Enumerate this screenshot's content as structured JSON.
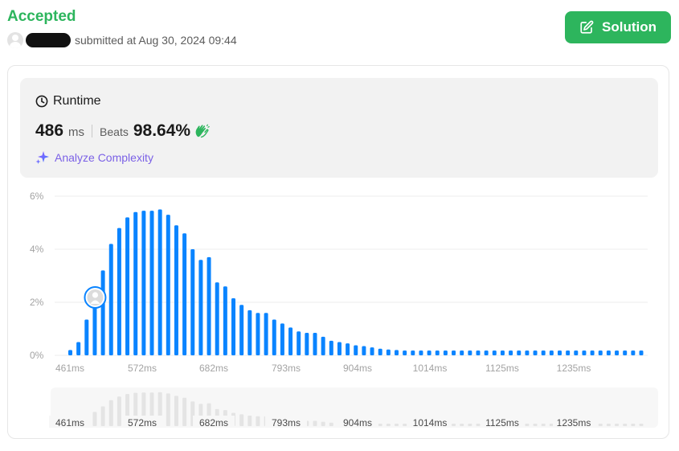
{
  "header": {
    "status": "Accepted",
    "submitted_text": "submitted at Aug 30, 2024 09:44",
    "solution_label": "Solution"
  },
  "runtime": {
    "title": "Runtime",
    "value": "486",
    "unit": "ms",
    "beats_label": "Beats",
    "beats_value": "98.64%",
    "analyze_label": "Analyze Complexity"
  },
  "colors": {
    "accepted_green": "#2db55d",
    "bar_blue": "#0a84ff",
    "analyze_purple": "#7b61e6",
    "minimap_bar": "#e4e4e4"
  },
  "icons": [
    "user-avatar-icon",
    "edit-icon",
    "clock-icon",
    "clap-hands-icon",
    "sparkle-icon"
  ],
  "chart_data": {
    "type": "bar",
    "title": "",
    "xlabel": "",
    "ylabel": "",
    "ylim": [
      0,
      6
    ],
    "yticks": [
      "0%",
      "2%",
      "4%",
      "6%"
    ],
    "xticks": [
      "461ms",
      "572ms",
      "682ms",
      "793ms",
      "904ms",
      "1014ms",
      "1125ms",
      "1235ms"
    ],
    "grid": true,
    "user_bar_index": 3,
    "series": [
      {
        "values": [
          0.2,
          0.5,
          1.35,
          2.3,
          3.2,
          4.2,
          4.8,
          5.2,
          5.4,
          5.45,
          5.45,
          5.5,
          5.3,
          4.9,
          4.6,
          4.0,
          3.6,
          3.7,
          2.75,
          2.6,
          2.15,
          1.9,
          1.7,
          1.6,
          1.6,
          1.35,
          1.2,
          1.05,
          0.9,
          0.85,
          0.85,
          0.7,
          0.55,
          0.5,
          0.45,
          0.38,
          0.35,
          0.3,
          0.25,
          0.22,
          0.2,
          0.18,
          0.18,
          0.18,
          0.18,
          0.18,
          0.18,
          0.18,
          0.18,
          0.18,
          0.18,
          0.18,
          0.18,
          0.18,
          0.18,
          0.18,
          0.18,
          0.18,
          0.18,
          0.18,
          0.18,
          0.18,
          0.18,
          0.18,
          0.18,
          0.18,
          0.18,
          0.18,
          0.18,
          0.18,
          0.18
        ]
      }
    ]
  }
}
